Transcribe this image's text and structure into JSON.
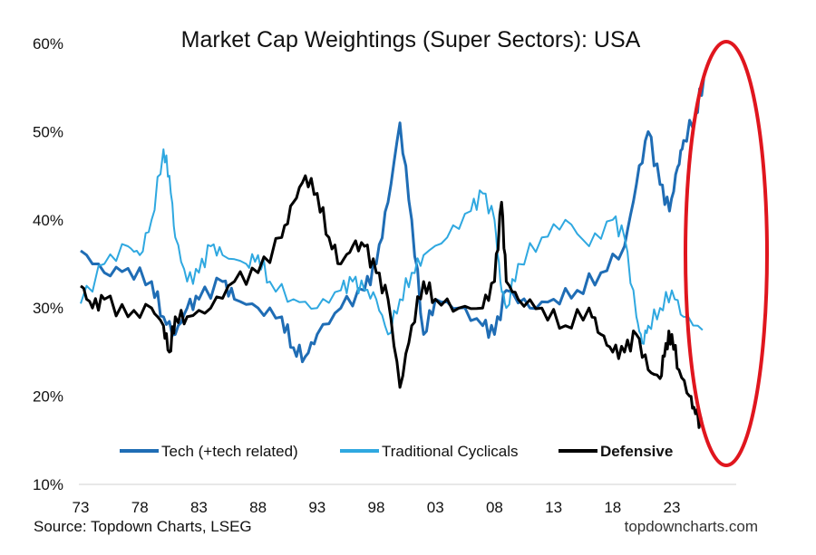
{
  "chart_data": {
    "type": "line",
    "title": "Market Cap Weightings (Super Sectors): USA",
    "xlabel": "",
    "ylabel": "",
    "ylim": [
      10,
      60
    ],
    "xlim": [
      1973,
      2026.5
    ],
    "y_ticks": [
      "10%",
      "20%",
      "30%",
      "40%",
      "50%",
      "60%"
    ],
    "y_tick_values": [
      10,
      20,
      30,
      40,
      50,
      60
    ],
    "x_ticks": [
      "73",
      "78",
      "83",
      "88",
      "93",
      "98",
      "03",
      "08",
      "13",
      "18",
      "23"
    ],
    "x_tick_values": [
      1973,
      1978,
      1983,
      1988,
      1993,
      1998,
      2003,
      2008,
      2013,
      2018,
      2023
    ],
    "grid": false,
    "legend_placement": "bottom-inside",
    "source": "Source: Topdown Charts, LSEG",
    "watermark": "topdowncharts.com",
    "annotation": "red ellipse highlighting 2022-2025",
    "series": [
      {
        "name": "Tech (+tech related)",
        "color": "#1f6db5",
        "bold": false,
        "x": [
          1973,
          1975,
          1977,
          1979,
          1980,
          1981,
          1982,
          1983,
          1985,
          1986,
          1988,
          1990,
          1991,
          1992,
          1993,
          1995,
          1997,
          1998,
          1999,
          2000,
          2001,
          2002,
          2003,
          2005,
          2007,
          2008,
          2009,
          2011,
          2013,
          2015,
          2017,
          2019,
          2020,
          2021,
          2022,
          2022.8,
          2023.5,
          2024,
          2025,
          2025.7
        ],
        "y": [
          36.5,
          34,
          34.5,
          33,
          29,
          27,
          30,
          31,
          33,
          31,
          30,
          29,
          25.5,
          24.5,
          27,
          30,
          32,
          35,
          42,
          51,
          40,
          27,
          31,
          30,
          28,
          27,
          32,
          30,
          31,
          32,
          34,
          37,
          44,
          50,
          44,
          41,
          46,
          49,
          52,
          56
        ]
      },
      {
        "name": "Traditional Cyclicals",
        "color": "#2fa8e0",
        "bold": false,
        "x": [
          1973,
          1975,
          1977,
          1978,
          1979,
          1980,
          1980.5,
          1981,
          1982,
          1983,
          1984,
          1985,
          1987,
          1988,
          1989,
          1991,
          1993,
          1995,
          1996,
          1997,
          1998,
          1999,
          2000,
          2001,
          2002,
          2004,
          2006,
          2007,
          2008,
          2008.5,
          2009,
          2010,
          2012,
          2014,
          2016,
          2018,
          2019,
          2020,
          2020.5,
          2021,
          2022,
          2023,
          2024,
          2025.6
        ],
        "y": [
          30.5,
          35,
          37,
          36,
          40,
          48,
          45,
          38,
          33,
          34,
          37,
          36,
          35,
          36,
          33,
          31,
          30,
          32,
          33,
          32,
          31,
          27,
          31,
          34,
          36,
          38,
          41,
          43,
          40,
          33,
          30,
          35,
          38,
          40,
          37,
          40,
          38,
          29,
          26,
          28,
          30,
          32,
          29,
          27.5
        ]
      },
      {
        "name": "Defensive",
        "color": "#000000",
        "bold": true,
        "x": [
          1973,
          1974,
          1975,
          1977,
          1979,
          1980,
          1980.5,
          1981,
          1982,
          1984,
          1986,
          1988,
          1990,
          1991,
          1992,
          1993,
          1994,
          1995,
          1996,
          1997,
          1998,
          1999,
          2000,
          2001,
          2002,
          2003,
          2005,
          2007,
          2008,
          2008.6,
          2009,
          2010,
          2012,
          2014,
          2016,
          2017,
          2018,
          2019,
          2020,
          2021,
          2022,
          2022.5,
          2023,
          2023.6,
          2024.5,
          2025,
          2025.6
        ],
        "y": [
          32.5,
          30,
          31,
          29,
          30,
          28,
          25,
          29,
          29,
          30,
          33,
          34,
          38,
          42,
          45,
          43,
          38,
          35,
          37,
          37,
          34,
          31,
          21,
          28,
          33,
          31,
          30,
          30,
          33,
          42,
          33,
          31,
          30,
          28,
          30,
          27,
          25,
          25,
          27,
          23,
          22,
          26,
          27,
          23,
          20,
          18,
          16.5
        ]
      }
    ]
  }
}
